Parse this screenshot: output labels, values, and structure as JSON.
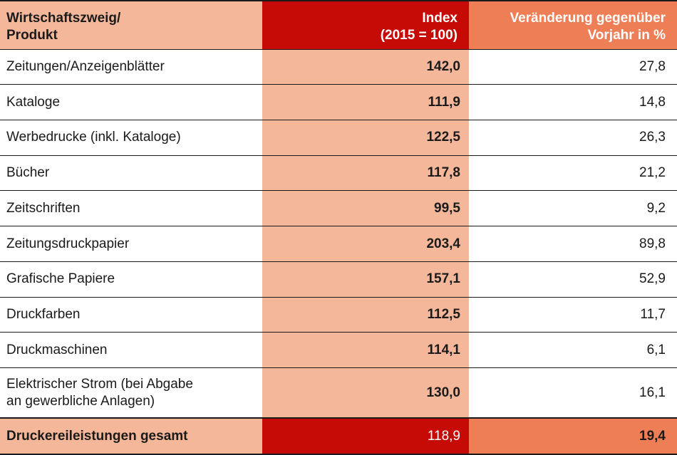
{
  "header": {
    "label_lines": [
      "Wirtschaftszweig/",
      "Produkt"
    ],
    "index_lines": [
      "Index",
      "(2015 = 100)"
    ],
    "change_lines": [
      "Veränderung gegenüber",
      "Vorjahr in %"
    ]
  },
  "rows": [
    {
      "label_lines": [
        "Zeitungen/Anzeigenblätter"
      ],
      "index": "142,0",
      "change": "27,8"
    },
    {
      "label_lines": [
        "Kataloge"
      ],
      "index": "111,9",
      "change": "14,8"
    },
    {
      "label_lines": [
        "Werbedrucke (inkl. Kataloge)"
      ],
      "index": "122,5",
      "change": "26,3"
    },
    {
      "label_lines": [
        "Bücher"
      ],
      "index": "117,8",
      "change": "21,2"
    },
    {
      "label_lines": [
        "Zeitschriften"
      ],
      "index": "99,5",
      "change": "9,2"
    },
    {
      "label_lines": [
        "Zeitungsdruckpapier"
      ],
      "index": "203,4",
      "change": "89,8"
    },
    {
      "label_lines": [
        "Grafische Papiere"
      ],
      "index": "157,1",
      "change": "52,9"
    },
    {
      "label_lines": [
        "Druckfarben"
      ],
      "index": "112,5",
      "change": "11,7"
    },
    {
      "label_lines": [
        "Druckmaschinen"
      ],
      "index": "114,1",
      "change": "6,1"
    },
    {
      "label_lines": [
        "Elektrischer Strom (bei Abgabe",
        "an gewerbliche Anlagen)"
      ],
      "index": "130,0",
      "change": "16,1"
    }
  ],
  "total": {
    "label": "Druckereileistungen gesamt",
    "index": "118,9",
    "change": "19,4"
  },
  "colors": {
    "peach": "#f5b799",
    "red": "#c60b07",
    "orange": "#ee7e56"
  }
}
